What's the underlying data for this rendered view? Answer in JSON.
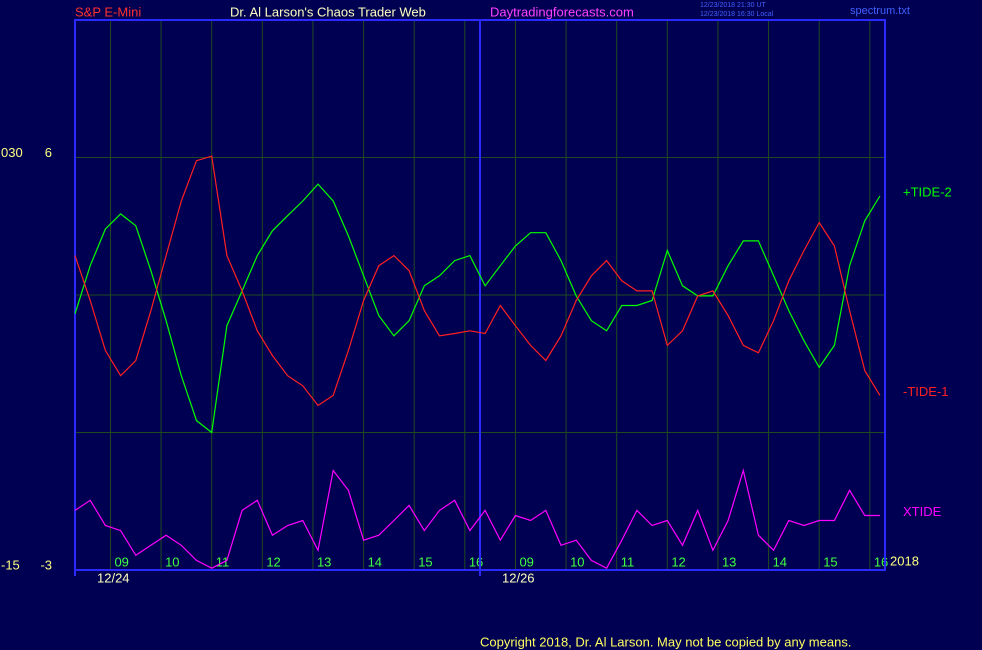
{
  "chart_data": {
    "type": "line",
    "instrument": "S&P E-Mini",
    "title": "Dr. Al Larson's Chaos Trader Web",
    "website": "Daytradingforecasts.com",
    "timestamps": [
      "12/23/2018 21:30 UT",
      "12/23/2018 16:30 Local"
    ],
    "file": "spectrum.txt",
    "year": 2018,
    "copyright": "Copyright 2018, Dr. Al Larson. May not be copied by any means.",
    "x": [
      -0.7,
      -0.4,
      -0.1,
      0.2,
      0.5,
      0.8,
      1.1,
      1.4,
      1.7,
      2,
      2.3,
      2.6,
      2.9,
      3.2,
      3.5,
      3.8,
      4.1,
      4.4,
      4.7,
      5,
      5.3,
      5.6,
      5.9,
      6.2,
      6.5,
      6.8,
      7.1,
      7.4,
      7.7,
      8,
      8.3,
      8.6,
      8.9,
      9.2,
      9.5,
      9.8,
      10.1,
      10.4,
      10.7,
      11,
      11.3,
      11.6,
      11.9,
      12.2,
      12.5,
      12.8,
      13.1,
      13.4,
      13.7,
      14,
      14.3,
      14.6,
      14.9,
      15.2
    ],
    "xlim": [
      -0.7,
      15.3
    ],
    "xticks": [
      {
        "value": 0,
        "label": "09"
      },
      {
        "value": 1,
        "label": "10"
      },
      {
        "value": 2,
        "label": "11"
      },
      {
        "value": 3,
        "label": "12"
      },
      {
        "value": 4,
        "label": "13"
      },
      {
        "value": 5,
        "label": "14"
      },
      {
        "value": 6,
        "label": "15"
      },
      {
        "value": 7,
        "label": "16"
      },
      {
        "value": 8,
        "label": "09"
      },
      {
        "value": 9,
        "label": "10"
      },
      {
        "value": 10,
        "label": "11"
      },
      {
        "value": 11,
        "label": "12"
      },
      {
        "value": 12,
        "label": "13"
      },
      {
        "value": 13,
        "label": "14"
      },
      {
        "value": 14,
        "label": "15"
      },
      {
        "value": 15,
        "label": "16"
      }
    ],
    "dates": [
      {
        "value": -0.7,
        "label": "12/24"
      },
      {
        "value": 7.3,
        "label": "12/26"
      }
    ],
    "ylim": [
      -3,
      9
    ],
    "yticks": [
      -3,
      6
    ],
    "ygrid": [
      0,
      3,
      6
    ],
    "y2lim": [
      -15,
      45
    ],
    "y2ticks": [
      -15,
      {
        "value": 30,
        "label": "030"
      }
    ],
    "grid": true,
    "series": [
      {
        "name": "+TIDE-2",
        "color": "#00ff00",
        "values": [
          2.59,
          3.64,
          4.44,
          4.77,
          4.51,
          3.53,
          2.44,
          1.24,
          0.26,
          0,
          2.33,
          3.09,
          3.86,
          4.4,
          4.73,
          5.05,
          5.42,
          5.05,
          4.29,
          3.42,
          2.55,
          2.11,
          2.44,
          3.2,
          3.42,
          3.75,
          3.86,
          3.2,
          3.64,
          4.07,
          4.36,
          4.36,
          3.75,
          2.98,
          2.44,
          2.22,
          2.77,
          2.77,
          2.88,
          3.97,
          3.2,
          2.98,
          2.98,
          3.64,
          4.18,
          4.18,
          3.42,
          2.66,
          2.0,
          1.42,
          1.9,
          3.64,
          4.62,
          5.16
        ]
      },
      {
        "name": "-TIDE-1",
        "color": "#ff2020",
        "values": [
          3.86,
          2.88,
          1.79,
          1.24,
          1.57,
          2.66,
          3.86,
          5.05,
          5.93,
          6.03,
          3.86,
          3.09,
          2.22,
          1.68,
          1.24,
          1.02,
          0.59,
          0.81,
          1.79,
          2.88,
          3.64,
          3.86,
          3.53,
          2.66,
          2.11,
          2.16,
          2.22,
          2.16,
          2.77,
          2.33,
          1.9,
          1.57,
          2.11,
          2.88,
          3.42,
          3.75,
          3.31,
          3.09,
          3.09,
          1.9,
          2.22,
          2.98,
          3.09,
          2.55,
          1.9,
          1.74,
          2.44,
          3.31,
          3.97,
          4.58,
          4.07,
          2.66,
          1.35,
          0.81
        ]
      },
      {
        "name": "XTIDE",
        "color": "#ff00ff",
        "values": [
          -1.7,
          -1.48,
          -2.03,
          -2.14,
          -2.68,
          -2.46,
          -2.24,
          -2.46,
          -2.79,
          -2.96,
          -2.79,
          -1.7,
          -1.48,
          -2.24,
          -2.03,
          -1.92,
          -2.57,
          -0.83,
          -1.26,
          -2.35,
          -2.24,
          -1.92,
          -1.59,
          -2.14,
          -1.7,
          -1.48,
          -2.14,
          -1.7,
          -2.35,
          -1.81,
          -1.92,
          -1.7,
          -2.46,
          -2.35,
          -2.79,
          -2.96,
          -2.35,
          -1.7,
          -2.03,
          -1.92,
          -2.46,
          -1.7,
          -2.57,
          -1.92,
          -0.83,
          -2.24,
          -2.57,
          -1.92,
          -2.03,
          -1.92,
          -1.92,
          -1.26,
          -1.81,
          -1.81
        ]
      }
    ]
  }
}
